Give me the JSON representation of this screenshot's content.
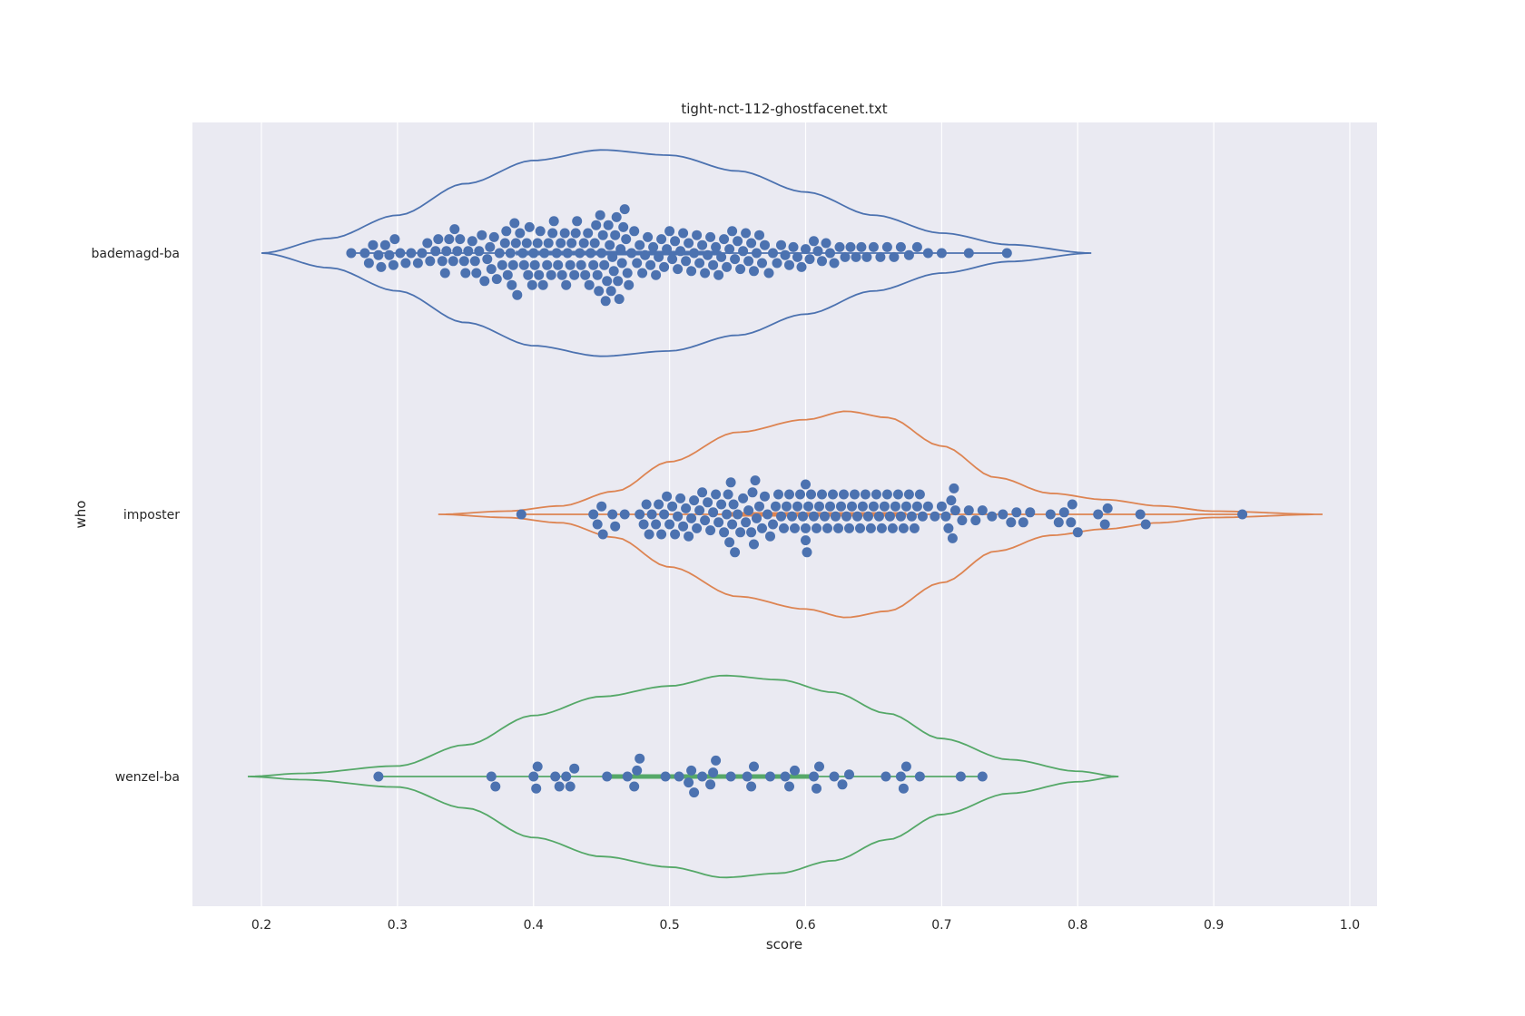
{
  "chart_data": {
    "type": "violin-swarm",
    "title": "tight-nct-112-ghostfacenet.txt",
    "xlabel": "score",
    "ylabel": "who",
    "xlim": [
      0.15,
      1.02
    ],
    "xticks": [
      "0.2",
      "0.3",
      "0.4",
      "0.5",
      "0.6",
      "0.7",
      "0.8",
      "0.9",
      "1.0"
    ],
    "xtick_values": [
      0.2,
      0.3,
      0.4,
      0.5,
      0.6,
      0.7,
      0.8,
      0.9,
      1.0
    ],
    "grid": true,
    "point_color": "#4c72b0",
    "series": [
      {
        "name": "bademagd-ba",
        "color": "#4c72b0",
        "violin_range": [
          0.2,
          0.81
        ],
        "violin_profile": [
          [
            0.2,
            0.0
          ],
          [
            0.25,
            0.14
          ],
          [
            0.3,
            0.36
          ],
          [
            0.35,
            0.66
          ],
          [
            0.4,
            0.88
          ],
          [
            0.45,
            0.98
          ],
          [
            0.5,
            0.93
          ],
          [
            0.55,
            0.78
          ],
          [
            0.6,
            0.58
          ],
          [
            0.65,
            0.36
          ],
          [
            0.7,
            0.19
          ],
          [
            0.75,
            0.08
          ],
          [
            0.81,
            0.0
          ]
        ],
        "points": [
          0.266,
          0.276,
          0.279,
          0.282,
          0.286,
          0.288,
          0.291,
          0.294,
          0.297,
          0.298,
          0.302,
          0.306,
          0.31,
          0.315,
          0.318,
          0.322,
          0.324,
          0.328,
          0.33,
          0.333,
          0.335,
          0.336,
          0.338,
          0.341,
          0.342,
          0.344,
          0.346,
          0.349,
          0.35,
          0.352,
          0.355,
          0.357,
          0.358,
          0.36,
          0.362,
          0.364,
          0.366,
          0.368,
          0.369,
          0.371,
          0.373,
          0.375,
          0.377,
          0.379,
          0.38,
          0.381,
          0.383,
          0.384,
          0.385,
          0.386,
          0.387,
          0.388,
          0.39,
          0.392,
          0.393,
          0.395,
          0.396,
          0.397,
          0.399,
          0.4,
          0.401,
          0.403,
          0.404,
          0.405,
          0.407,
          0.408,
          0.41,
          0.411,
          0.413,
          0.414,
          0.415,
          0.417,
          0.418,
          0.42,
          0.421,
          0.423,
          0.424,
          0.425,
          0.427,
          0.428,
          0.43,
          0.431,
          0.432,
          0.434,
          0.435,
          0.437,
          0.438,
          0.44,
          0.441,
          0.442,
          0.444,
          0.445,
          0.446,
          0.447,
          0.448,
          0.449,
          0.45,
          0.451,
          0.452,
          0.453,
          0.454,
          0.455,
          0.456,
          0.457,
          0.458,
          0.459,
          0.46,
          0.461,
          0.462,
          0.463,
          0.464,
          0.465,
          0.466,
          0.467,
          0.468,
          0.469,
          0.47,
          0.472,
          0.474,
          0.476,
          0.478,
          0.48,
          0.482,
          0.484,
          0.486,
          0.488,
          0.49,
          0.492,
          0.494,
          0.496,
          0.498,
          0.5,
          0.502,
          0.504,
          0.506,
          0.508,
          0.51,
          0.512,
          0.514,
          0.516,
          0.518,
          0.52,
          0.522,
          0.524,
          0.526,
          0.528,
          0.53,
          0.532,
          0.534,
          0.536,
          0.538,
          0.54,
          0.542,
          0.544,
          0.546,
          0.548,
          0.55,
          0.552,
          0.554,
          0.556,
          0.558,
          0.56,
          0.562,
          0.564,
          0.566,
          0.568,
          0.57,
          0.573,
          0.576,
          0.579,
          0.582,
          0.585,
          0.588,
          0.591,
          0.594,
          0.597,
          0.6,
          0.603,
          0.606,
          0.609,
          0.612,
          0.615,
          0.618,
          0.621,
          0.625,
          0.629,
          0.633,
          0.637,
          0.641,
          0.645,
          0.65,
          0.655,
          0.66,
          0.665,
          0.67,
          0.676,
          0.682,
          0.69,
          0.7,
          0.72,
          0.748
        ]
      },
      {
        "name": "imposter",
        "color": "#dd8452",
        "violin_range": [
          0.33,
          0.98
        ],
        "violin_profile": [
          [
            0.33,
            0.0
          ],
          [
            0.38,
            0.03
          ],
          [
            0.42,
            0.08
          ],
          [
            0.46,
            0.22
          ],
          [
            0.5,
            0.5
          ],
          [
            0.55,
            0.78
          ],
          [
            0.6,
            0.9
          ],
          [
            0.63,
            0.98
          ],
          [
            0.66,
            0.92
          ],
          [
            0.7,
            0.65
          ],
          [
            0.74,
            0.35
          ],
          [
            0.78,
            0.2
          ],
          [
            0.82,
            0.14
          ],
          [
            0.86,
            0.08
          ],
          [
            0.9,
            0.03
          ],
          [
            0.98,
            0.0
          ]
        ],
        "points": [
          0.391,
          0.444,
          0.447,
          0.45,
          0.451,
          0.458,
          0.46,
          0.467,
          0.478,
          0.481,
          0.483,
          0.485,
          0.487,
          0.49,
          0.492,
          0.494,
          0.496,
          0.498,
          0.5,
          0.502,
          0.504,
          0.506,
          0.508,
          0.51,
          0.512,
          0.514,
          0.516,
          0.518,
          0.52,
          0.522,
          0.524,
          0.526,
          0.528,
          0.53,
          0.532,
          0.534,
          0.536,
          0.538,
          0.54,
          0.542,
          0.543,
          0.544,
          0.545,
          0.546,
          0.547,
          0.548,
          0.55,
          0.552,
          0.554,
          0.556,
          0.558,
          0.56,
          0.561,
          0.562,
          0.563,
          0.564,
          0.566,
          0.568,
          0.57,
          0.572,
          0.574,
          0.576,
          0.578,
          0.58,
          0.582,
          0.584,
          0.586,
          0.588,
          0.59,
          0.592,
          0.594,
          0.596,
          0.598,
          0.6,
          0.6,
          0.6,
          0.601,
          0.602,
          0.604,
          0.606,
          0.608,
          0.61,
          0.612,
          0.614,
          0.616,
          0.618,
          0.62,
          0.622,
          0.624,
          0.626,
          0.628,
          0.63,
          0.632,
          0.634,
          0.636,
          0.638,
          0.64,
          0.642,
          0.644,
          0.646,
          0.648,
          0.65,
          0.652,
          0.654,
          0.656,
          0.658,
          0.66,
          0.662,
          0.664,
          0.666,
          0.668,
          0.67,
          0.672,
          0.674,
          0.676,
          0.678,
          0.68,
          0.682,
          0.684,
          0.686,
          0.69,
          0.695,
          0.7,
          0.703,
          0.705,
          0.707,
          0.708,
          0.709,
          0.71,
          0.715,
          0.72,
          0.725,
          0.73,
          0.737,
          0.745,
          0.751,
          0.755,
          0.76,
          0.765,
          0.78,
          0.786,
          0.79,
          0.795,
          0.796,
          0.8,
          0.815,
          0.82,
          0.822,
          0.846,
          0.85,
          0.921
        ]
      },
      {
        "name": "wenzel-ba",
        "color": "#55a868",
        "violin_range": [
          0.19,
          0.83
        ],
        "violin_profile": [
          [
            0.19,
            0.0
          ],
          [
            0.23,
            0.03
          ],
          [
            0.3,
            0.1
          ],
          [
            0.35,
            0.3
          ],
          [
            0.4,
            0.58
          ],
          [
            0.45,
            0.76
          ],
          [
            0.5,
            0.86
          ],
          [
            0.54,
            0.96
          ],
          [
            0.58,
            0.92
          ],
          [
            0.62,
            0.8
          ],
          [
            0.66,
            0.6
          ],
          [
            0.7,
            0.36
          ],
          [
            0.75,
            0.16
          ],
          [
            0.8,
            0.05
          ],
          [
            0.83,
            0.0
          ]
        ],
        "points": [
          0.286,
          0.369,
          0.372,
          0.4,
          0.402,
          0.403,
          0.416,
          0.419,
          0.424,
          0.427,
          0.43,
          0.454,
          0.469,
          0.474,
          0.476,
          0.478,
          0.497,
          0.507,
          0.514,
          0.516,
          0.518,
          0.524,
          0.53,
          0.532,
          0.534,
          0.545,
          0.557,
          0.56,
          0.562,
          0.574,
          0.585,
          0.588,
          0.592,
          0.606,
          0.608,
          0.61,
          0.621,
          0.627,
          0.632,
          0.659,
          0.67,
          0.672,
          0.674,
          0.684,
          0.714,
          0.73
        ]
      }
    ]
  }
}
